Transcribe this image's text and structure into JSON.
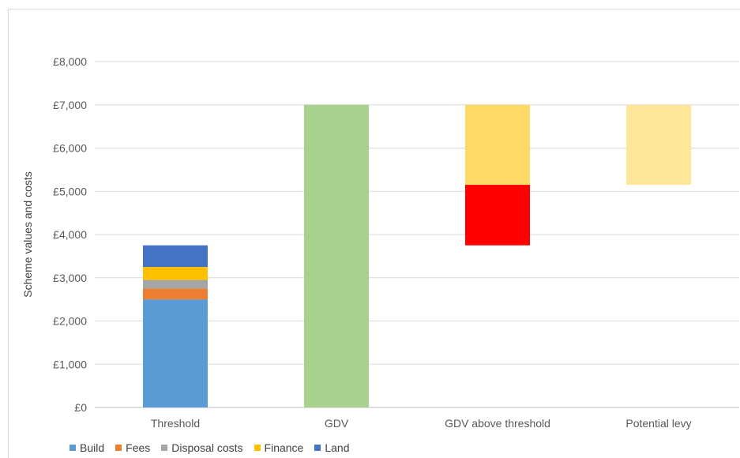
{
  "chart_data": {
    "type": "bar",
    "stacked": true,
    "title": "",
    "ylabel": "Scheme values and costs",
    "xlabel": "",
    "ylim": [
      0,
      8000
    ],
    "grid": true,
    "legend_position": "bottom-left",
    "y_ticks": [
      "£0",
      "£1,000",
      "£2,000",
      "£3,000",
      "£4,000",
      "£5,000",
      "£6,000",
      "£7,000",
      "£8,000"
    ],
    "categories": [
      "Threshold",
      "GDV",
      "GDV above threshold",
      "Potential levy"
    ],
    "legend": [
      {
        "name": "Build",
        "color": "#5b9bd5"
      },
      {
        "name": "Fees",
        "color": "#ed7d31"
      },
      {
        "name": "Disposal costs",
        "color": "#a5a5a5"
      },
      {
        "name": "Finance",
        "color": "#ffc000"
      },
      {
        "name": "Land",
        "color": "#4472c4"
      }
    ],
    "segments": [
      {
        "category": "Threshold",
        "series": "Build",
        "from": 0,
        "to": 2500,
        "color": "#5b9bd5"
      },
      {
        "category": "Threshold",
        "series": "Fees",
        "from": 2500,
        "to": 2750,
        "color": "#ed7d31"
      },
      {
        "category": "Threshold",
        "series": "Disposal costs",
        "from": 2750,
        "to": 2950,
        "color": "#a5a5a5"
      },
      {
        "category": "Threshold",
        "series": "Finance",
        "from": 2950,
        "to": 3250,
        "color": "#ffc000"
      },
      {
        "category": "Threshold",
        "series": "Land",
        "from": 3250,
        "to": 3750,
        "color": "#4472c4"
      },
      {
        "category": "GDV",
        "series": "",
        "from": 0,
        "to": 7000,
        "color": "#a9d18e"
      },
      {
        "category": "GDV above threshold",
        "series": "",
        "from": 3750,
        "to": 5150,
        "color": "#ff0000"
      },
      {
        "category": "GDV above threshold",
        "series": "",
        "from": 5150,
        "to": 7000,
        "color": "#ffd966"
      },
      {
        "category": "Potential levy",
        "series": "",
        "from": 5150,
        "to": 7000,
        "color": "#ffe699"
      }
    ]
  }
}
